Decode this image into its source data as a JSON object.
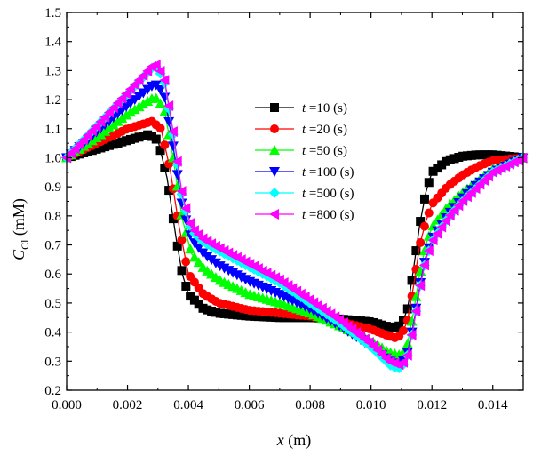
{
  "chart_data": {
    "type": "line",
    "xlabel": {
      "var": "x",
      "unit": " (m)"
    },
    "ylabel": {
      "var": "C",
      "sub": "Cl",
      "unit": " (mM)"
    },
    "xlim": [
      0.0,
      0.015
    ],
    "ylim": [
      0.2,
      1.5
    ],
    "x_ticks": [
      "0.000",
      "0.002",
      "0.004",
      "0.006",
      "0.008",
      "0.010",
      "0.012",
      "0.014"
    ],
    "y_ticks": [
      "0.2",
      "0.3",
      "0.4",
      "0.5",
      "0.6",
      "0.7",
      "0.8",
      "0.9",
      "1.0",
      "1.1",
      "1.2",
      "1.3",
      "1.4",
      "1.5"
    ],
    "legend_position": "upper-center",
    "series": [
      {
        "name": "t =10 (s)",
        "color": "#000000",
        "marker": "square",
        "points": [
          [
            0.0,
            1.0
          ],
          [
            0.001,
            1.03
          ],
          [
            0.002,
            1.06
          ],
          [
            0.0027,
            1.08
          ],
          [
            0.003,
            1.06
          ],
          [
            0.0033,
            0.93
          ],
          [
            0.0036,
            0.72
          ],
          [
            0.0038,
            0.6
          ],
          [
            0.004,
            0.53
          ],
          [
            0.0045,
            0.48
          ],
          [
            0.005,
            0.465
          ],
          [
            0.006,
            0.455
          ],
          [
            0.007,
            0.45
          ],
          [
            0.008,
            0.45
          ],
          [
            0.009,
            0.445
          ],
          [
            0.01,
            0.435
          ],
          [
            0.0105,
            0.42
          ],
          [
            0.0108,
            0.415
          ],
          [
            0.011,
            0.425
          ],
          [
            0.0112,
            0.48
          ],
          [
            0.0114,
            0.62
          ],
          [
            0.0116,
            0.77
          ],
          [
            0.0118,
            0.88
          ],
          [
            0.012,
            0.95
          ],
          [
            0.0125,
            0.99
          ],
          [
            0.013,
            1.005
          ],
          [
            0.0135,
            1.01
          ],
          [
            0.014,
            1.01
          ],
          [
            0.015,
            1.0
          ]
        ]
      },
      {
        "name": "t =20 (s)",
        "color": "#ff0000",
        "marker": "circle",
        "points": [
          [
            0.0,
            1.0
          ],
          [
            0.001,
            1.05
          ],
          [
            0.002,
            1.1
          ],
          [
            0.0028,
            1.125
          ],
          [
            0.0031,
            1.1
          ],
          [
            0.0034,
            0.96
          ],
          [
            0.0037,
            0.76
          ],
          [
            0.004,
            0.6
          ],
          [
            0.0045,
            0.53
          ],
          [
            0.005,
            0.5
          ],
          [
            0.006,
            0.475
          ],
          [
            0.007,
            0.465
          ],
          [
            0.008,
            0.455
          ],
          [
            0.009,
            0.435
          ],
          [
            0.01,
            0.41
          ],
          [
            0.0105,
            0.39
          ],
          [
            0.0108,
            0.38
          ],
          [
            0.011,
            0.39
          ],
          [
            0.0112,
            0.44
          ],
          [
            0.0114,
            0.56
          ],
          [
            0.0116,
            0.7
          ],
          [
            0.0118,
            0.78
          ],
          [
            0.012,
            0.84
          ],
          [
            0.0125,
            0.9
          ],
          [
            0.013,
            0.94
          ],
          [
            0.0135,
            0.97
          ],
          [
            0.014,
            0.99
          ],
          [
            0.015,
            1.0
          ]
        ]
      },
      {
        "name": "t =50 (s)",
        "color": "#00ff00",
        "marker": "triangle-up",
        "points": [
          [
            0.0,
            1.0
          ],
          [
            0.001,
            1.07
          ],
          [
            0.002,
            1.15
          ],
          [
            0.0029,
            1.21
          ],
          [
            0.0032,
            1.17
          ],
          [
            0.0035,
            1.0
          ],
          [
            0.0038,
            0.79
          ],
          [
            0.0041,
            0.67
          ],
          [
            0.0045,
            0.62
          ],
          [
            0.005,
            0.58
          ],
          [
            0.006,
            0.53
          ],
          [
            0.007,
            0.5
          ],
          [
            0.008,
            0.465
          ],
          [
            0.009,
            0.42
          ],
          [
            0.01,
            0.37
          ],
          [
            0.0106,
            0.33
          ],
          [
            0.011,
            0.32
          ],
          [
            0.0112,
            0.36
          ],
          [
            0.0114,
            0.47
          ],
          [
            0.0116,
            0.6
          ],
          [
            0.0118,
            0.7
          ],
          [
            0.012,
            0.76
          ],
          [
            0.0125,
            0.83
          ],
          [
            0.013,
            0.88
          ],
          [
            0.0135,
            0.92
          ],
          [
            0.014,
            0.96
          ],
          [
            0.015,
            1.0
          ]
        ]
      },
      {
        "name": "t =100 (s)",
        "color": "#0000ff",
        "marker": "triangle-down",
        "points": [
          [
            0.0,
            1.0
          ],
          [
            0.001,
            1.09
          ],
          [
            0.002,
            1.18
          ],
          [
            0.0029,
            1.255
          ],
          [
            0.0032,
            1.22
          ],
          [
            0.0035,
            1.04
          ],
          [
            0.0038,
            0.83
          ],
          [
            0.0041,
            0.72
          ],
          [
            0.0045,
            0.67
          ],
          [
            0.005,
            0.63
          ],
          [
            0.006,
            0.575
          ],
          [
            0.007,
            0.53
          ],
          [
            0.008,
            0.48
          ],
          [
            0.009,
            0.42
          ],
          [
            0.01,
            0.35
          ],
          [
            0.0107,
            0.295
          ],
          [
            0.011,
            0.29
          ],
          [
            0.0112,
            0.33
          ],
          [
            0.0114,
            0.43
          ],
          [
            0.0116,
            0.56
          ],
          [
            0.0118,
            0.66
          ],
          [
            0.012,
            0.72
          ],
          [
            0.0125,
            0.8
          ],
          [
            0.013,
            0.86
          ],
          [
            0.0135,
            0.91
          ],
          [
            0.014,
            0.95
          ],
          [
            0.015,
            1.0
          ]
        ]
      },
      {
        "name": "t =500 (s)",
        "color": "#00ffff",
        "marker": "diamond",
        "points": [
          [
            0.0,
            1.0
          ],
          [
            0.001,
            1.11
          ],
          [
            0.002,
            1.22
          ],
          [
            0.0029,
            1.32
          ],
          [
            0.0032,
            1.27
          ],
          [
            0.0035,
            1.08
          ],
          [
            0.0038,
            0.86
          ],
          [
            0.0041,
            0.75
          ],
          [
            0.0045,
            0.71
          ],
          [
            0.005,
            0.68
          ],
          [
            0.006,
            0.625
          ],
          [
            0.007,
            0.57
          ],
          [
            0.008,
            0.5
          ],
          [
            0.009,
            0.43
          ],
          [
            0.01,
            0.35
          ],
          [
            0.0107,
            0.28
          ],
          [
            0.011,
            0.275
          ],
          [
            0.0112,
            0.32
          ],
          [
            0.0114,
            0.42
          ],
          [
            0.0116,
            0.55
          ],
          [
            0.0118,
            0.65
          ],
          [
            0.012,
            0.71
          ],
          [
            0.0125,
            0.79
          ],
          [
            0.013,
            0.85
          ],
          [
            0.0135,
            0.9
          ],
          [
            0.014,
            0.95
          ],
          [
            0.015,
            1.0
          ]
        ]
      },
      {
        "name": "t =800 (s)",
        "color": "#ff00ff",
        "marker": "triangle-left",
        "points": [
          [
            0.0,
            1.0
          ],
          [
            0.001,
            1.11
          ],
          [
            0.002,
            1.225
          ],
          [
            0.0029,
            1.325
          ],
          [
            0.0032,
            1.28
          ],
          [
            0.0035,
            1.09
          ],
          [
            0.0038,
            0.87
          ],
          [
            0.0041,
            0.76
          ],
          [
            0.0045,
            0.72
          ],
          [
            0.005,
            0.69
          ],
          [
            0.006,
            0.635
          ],
          [
            0.007,
            0.58
          ],
          [
            0.008,
            0.51
          ],
          [
            0.009,
            0.44
          ],
          [
            0.01,
            0.36
          ],
          [
            0.0106,
            0.3
          ],
          [
            0.011,
            0.285
          ],
          [
            0.0112,
            0.32
          ],
          [
            0.0114,
            0.42
          ],
          [
            0.0116,
            0.55
          ],
          [
            0.0118,
            0.65
          ],
          [
            0.012,
            0.71
          ],
          [
            0.0125,
            0.79
          ],
          [
            0.013,
            0.85
          ],
          [
            0.0135,
            0.9
          ],
          [
            0.014,
            0.95
          ],
          [
            0.015,
            1.0
          ]
        ]
      }
    ]
  }
}
